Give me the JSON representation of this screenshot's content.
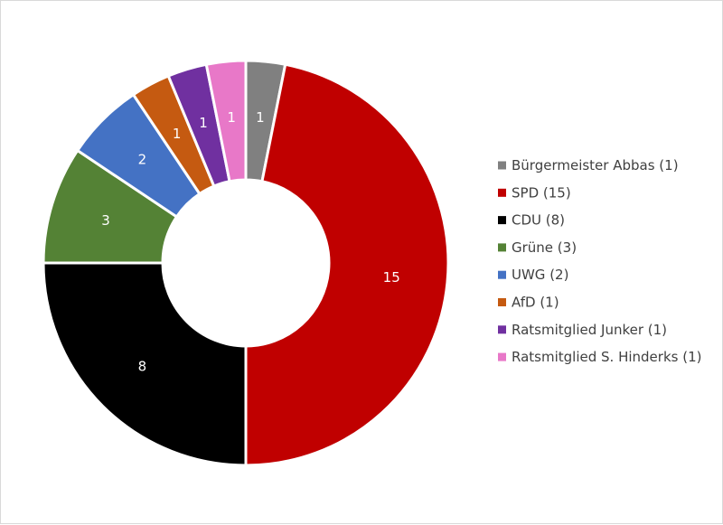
{
  "chart_data": {
    "type": "pie",
    "donut": true,
    "title": "",
    "legend_position": "right",
    "slices": [
      {
        "label": "Bürgermeister Abbas (1)",
        "value": 1,
        "data_label": "1",
        "color": "#808080"
      },
      {
        "label": "SPD (15)",
        "value": 15,
        "data_label": "15",
        "color": "#c00000"
      },
      {
        "label": "CDU (8)",
        "value": 8,
        "data_label": "8",
        "color": "#000000"
      },
      {
        "label": "Grüne (3)",
        "value": 3,
        "data_label": "3",
        "color": "#548235"
      },
      {
        "label": "UWG (2)",
        "value": 2,
        "data_label": "2",
        "color": "#4472c4"
      },
      {
        "label": "AfD (1)",
        "value": 1,
        "data_label": "1",
        "color": "#c55a11"
      },
      {
        "label": "Ratsmitglied Junker (1)",
        "value": 1,
        "data_label": "1",
        "color": "#7030a0"
      },
      {
        "label": "Ratsmitglied S. Hinderks (1)",
        "value": 1,
        "data_label": "1",
        "color": "#e878c8"
      }
    ]
  }
}
